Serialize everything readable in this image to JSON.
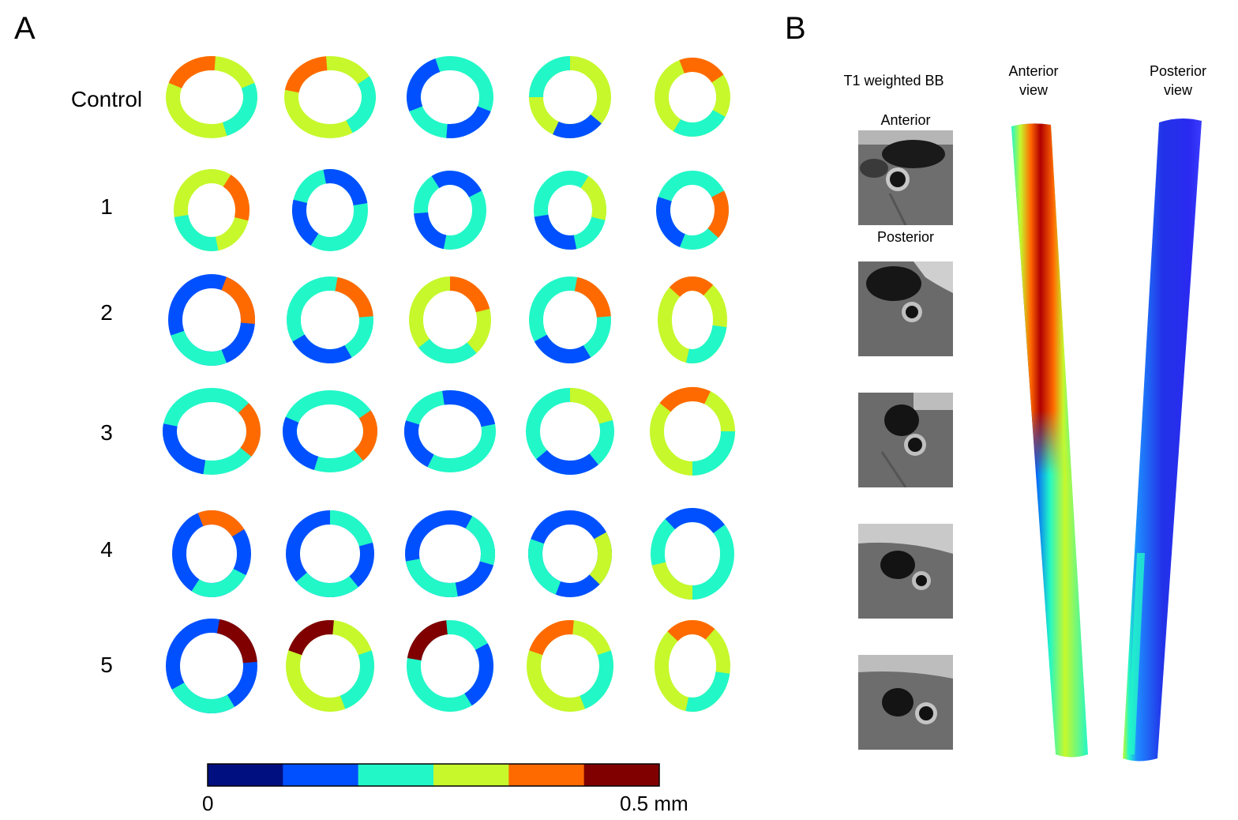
{
  "panelA": {
    "letter": "A",
    "rows": [
      "Control",
      "1",
      "2",
      "3",
      "4",
      "5"
    ]
  },
  "colorbar": {
    "colors": [
      "#000f80",
      "#0050ff",
      "#22f7c8",
      "#c6f82c",
      "#ff6a00",
      "#800000"
    ],
    "min_label": "0",
    "max_label": "0.5 mm"
  },
  "panelB": {
    "letter": "B",
    "t1_title": "T1 weighted BB",
    "anterior_label": "Anterior",
    "posterior_label": "Posterior",
    "anterior_view_line1": "Anterior",
    "anterior_view_line2": "view",
    "posterior_view_line1": "Posterior",
    "posterior_view_line2": "view"
  }
}
